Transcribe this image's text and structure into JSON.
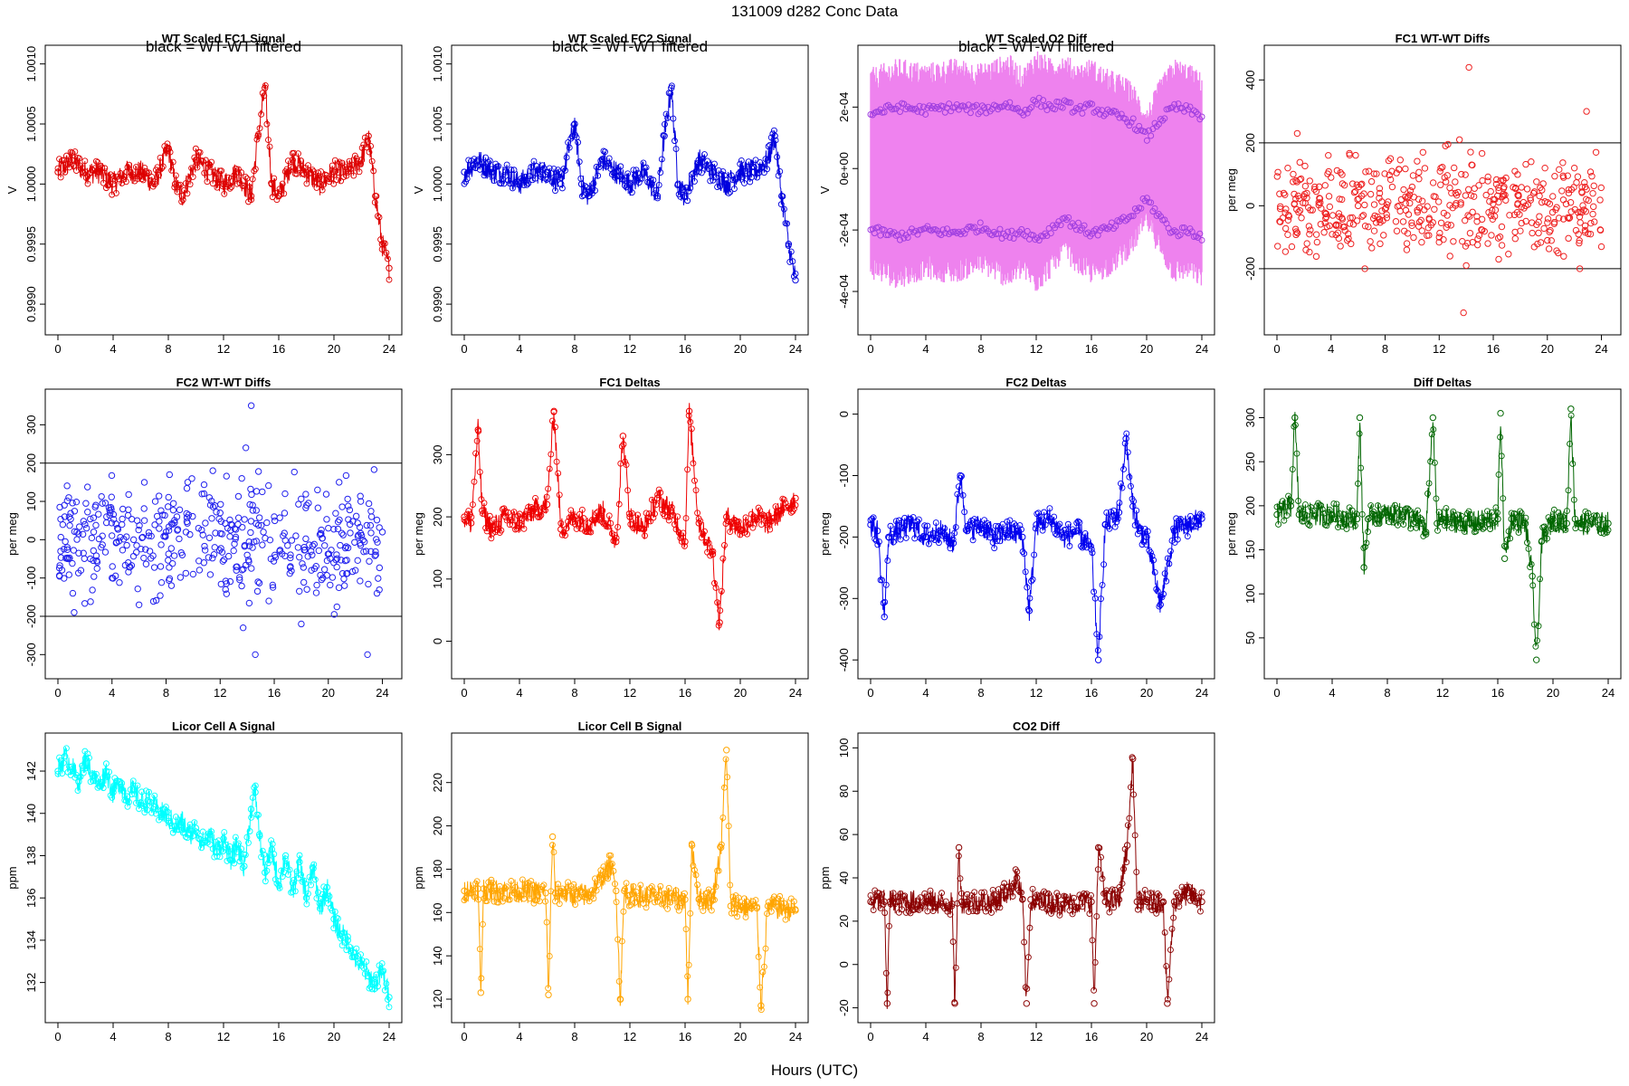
{
  "page": {
    "title": "131009    d282    Conc Data",
    "xlabel": "Hours (UTC)"
  },
  "chart_data": [
    {
      "id": "wt-fc1-signal",
      "type": "line",
      "title": "WT Scaled FC1 Signal",
      "annotation": "black = WT-WT filtered",
      "ylabel": "V",
      "xlim": [
        0,
        24
      ],
      "ylim": [
        0.99885,
        1.00105
      ],
      "xticks": [
        "0",
        "4",
        "8",
        "12",
        "16",
        "20",
        "24"
      ],
      "yticks": [
        "0.9990",
        "0.9995",
        "1.0000",
        "1.0005",
        "1.0010"
      ],
      "ytick_values": [
        0.999,
        0.9995,
        1.0,
        1.0005,
        1.001
      ],
      "color": "#dd0000",
      "style": "line+points",
      "x": [
        0,
        1,
        2,
        3,
        4,
        5,
        6,
        7,
        8,
        8.5,
        9,
        10,
        11,
        12,
        13,
        14,
        14.5,
        15,
        15.5,
        16,
        17,
        18,
        19,
        20,
        21,
        22,
        22.5,
        23,
        23.5,
        24
      ],
      "y": [
        1.0001,
        1.0002,
        1.0001,
        1.0001,
        1.0,
        1.0001,
        1.0001,
        1.0,
        1.0003,
        1.0,
        0.9999,
        1.0002,
        1.0001,
        1.0,
        1.0001,
        0.9999,
        1.0004,
        1.0008,
        1.0,
        0.9999,
        1.0002,
        1.0001,
        1.0,
        1.0001,
        1.0001,
        1.0002,
        1.0004,
        0.9999,
        0.9995,
        0.9993
      ]
    },
    {
      "id": "wt-fc2-signal",
      "type": "line",
      "title": "WT Scaled FC2 Signal",
      "annotation": "black = WT-WT filtered",
      "ylabel": "V",
      "xlim": [
        0,
        24
      ],
      "ylim": [
        0.99885,
        1.00105
      ],
      "xticks": [
        "0",
        "4",
        "8",
        "12",
        "16",
        "20",
        "24"
      ],
      "yticks": [
        "0.9990",
        "0.9995",
        "1.0000",
        "1.0005",
        "1.0010"
      ],
      "ytick_values": [
        0.999,
        0.9995,
        1.0,
        1.0005,
        1.001
      ],
      "color": "#0000dd",
      "style": "line+points",
      "x": [
        0,
        1,
        2,
        3,
        4,
        5,
        6,
        7,
        8,
        8.5,
        9,
        10,
        11,
        12,
        13,
        14,
        14.5,
        15,
        15.5,
        16,
        17,
        18,
        19,
        20,
        21,
        22,
        22.5,
        23,
        23.5,
        24
      ],
      "y": [
        1.0001,
        1.0002,
        1.0001,
        1.0001,
        1.0,
        1.0001,
        1.0001,
        1.0,
        1.0005,
        1.0,
        0.9999,
        1.0002,
        1.0001,
        1.0,
        1.0001,
        0.9999,
        1.0004,
        1.0008,
        1.0,
        0.9999,
        1.0002,
        1.0001,
        1.0,
        1.0001,
        1.0001,
        1.0002,
        1.0004,
        0.9999,
        0.9995,
        0.9992
      ]
    },
    {
      "id": "wt-o2-diff",
      "type": "line",
      "title": "WT Scaled O2 Diff",
      "annotation": "black = WT-WT filtered",
      "ylabel": "V",
      "xlim": [
        0,
        24
      ],
      "ylim": [
        -0.0005,
        0.00036
      ],
      "xticks": [
        "0",
        "4",
        "8",
        "12",
        "16",
        "20",
        "24"
      ],
      "yticks": [
        "-4e-04",
        "-2e-04",
        "0e+00",
        "2e-04"
      ],
      "ytick_values": [
        -0.0004,
        -0.0002,
        0.0,
        0.0002
      ],
      "color": "#ee82ee",
      "point_color": "#a040e0",
      "style": "band+points",
      "x": [
        0,
        2,
        4,
        6,
        8,
        10,
        11,
        12,
        13,
        14,
        15,
        16,
        17,
        18,
        19,
        20,
        21,
        22,
        23,
        24
      ],
      "y_upper": [
        0.00018,
        0.0002,
        0.00019,
        0.0002,
        0.00019,
        0.00021,
        0.00018,
        0.00022,
        0.0002,
        0.00021,
        0.00019,
        0.0002,
        0.00018,
        0.00017,
        0.00015,
        0.0001,
        0.00016,
        0.0002,
        0.00019,
        0.00017
      ],
      "y_lower": [
        -0.0002,
        -0.00022,
        -0.0002,
        -0.00021,
        -0.00019,
        -0.00022,
        -0.0002,
        -0.00023,
        -0.0002,
        -0.00016,
        -0.00019,
        -0.00021,
        -0.0002,
        -0.00018,
        -0.00015,
        -0.0001,
        -0.00016,
        -0.00021,
        -0.0002,
        -0.00022
      ]
    },
    {
      "id": "fc1-wt-wt-diffs",
      "type": "scatter",
      "title": "FC1 WT-WT Diffs",
      "ylabel": "per meg",
      "xlim": [
        0,
        24.5
      ],
      "ylim": [
        -370,
        470
      ],
      "xticks": [
        "0",
        "4",
        "8",
        "12",
        "16",
        "20",
        "24"
      ],
      "yticks": [
        "-200",
        "0",
        "200",
        "400"
      ],
      "ytick_values": [
        -200,
        0,
        200,
        400
      ],
      "hlines": [
        200,
        -200
      ],
      "color": "#ee2222",
      "x": [
        0.2,
        0.5,
        0.8,
        1.1,
        1.4,
        1.6,
        2.0,
        2.4,
        2.8,
        3.2,
        3.6,
        4.0,
        4.4,
        4.8,
        5.2,
        5.6,
        6.0,
        6.4,
        6.8,
        7.2,
        7.6,
        8.0,
        8.4,
        8.8,
        9.2,
        9.6,
        10.0,
        10.4,
        10.8,
        11.2,
        11.6,
        12.0,
        12.4,
        12.8,
        13.2,
        13.6,
        14.0,
        14.4,
        14.8,
        15.2,
        15.6,
        16.0,
        16.4,
        16.8,
        17.2,
        17.6,
        18.0,
        18.4,
        18.8,
        19.2,
        19.6,
        20.0,
        20.4,
        20.8,
        21.2,
        21.6,
        22.0,
        22.4,
        22.8,
        23.2,
        23.6,
        24.0,
        13.8,
        14.2,
        13.5,
        6.5,
        1.5,
        22.9
      ],
      "y": [
        -50,
        40,
        120,
        -130,
        80,
        -20,
        30,
        -90,
        60,
        10,
        -40,
        90,
        -60,
        20,
        -110,
        70,
        0,
        -30,
        110,
        -80,
        40,
        -10,
        150,
        -50,
        20,
        -140,
        60,
        -20,
        170,
        -70,
        30,
        -100,
        90,
        -160,
        40,
        10,
        -190,
        130,
        -50,
        80,
        -120,
        20,
        -170,
        60,
        -30,
        110,
        -80,
        0,
        140,
        -60,
        50,
        -110,
        30,
        -150,
        90,
        -40,
        120,
        -200,
        60,
        -90,
        170,
        -130,
        -340,
        440,
        210,
        -200,
        230,
        300
      ]
    },
    {
      "id": "fc2-wt-wt-diffs",
      "type": "scatter",
      "title": "FC2 WT-WT Diffs",
      "ylabel": "per meg",
      "xlim": [
        0,
        24.5
      ],
      "ylim": [
        -330,
        360
      ],
      "xticks": [
        "0",
        "4",
        "8",
        "12",
        "16",
        "20",
        "24"
      ],
      "yticks": [
        "-300",
        "-200",
        "-100",
        "0",
        "100",
        "200",
        "300"
      ],
      "ytick_values": [
        -300,
        -200,
        -100,
        0,
        100,
        200,
        300
      ],
      "hlines": [
        200,
        -200
      ],
      "color": "#2222ee",
      "x": [
        0.2,
        0.5,
        0.8,
        1.1,
        1.4,
        1.7,
        2.0,
        2.4,
        2.8,
        3.2,
        3.6,
        4.0,
        4.4,
        4.8,
        5.2,
        5.6,
        6.0,
        6.4,
        6.8,
        7.2,
        7.6,
        8.0,
        8.4,
        8.8,
        9.2,
        9.6,
        10.0,
        10.4,
        10.8,
        11.2,
        11.6,
        12.0,
        12.4,
        12.8,
        13.2,
        13.6,
        14.0,
        14.4,
        14.8,
        15.2,
        15.6,
        16.0,
        16.4,
        16.8,
        17.2,
        17.6,
        18.0,
        18.4,
        18.8,
        19.2,
        19.6,
        20.0,
        20.4,
        20.8,
        21.2,
        21.6,
        22.0,
        22.4,
        22.8,
        23.2,
        23.6,
        24.0,
        14.3,
        14.6,
        13.9,
        22.9,
        13.7,
        1.2
      ],
      "y": [
        -30,
        60,
        110,
        -140,
        20,
        -80,
        40,
        -50,
        90,
        -20,
        60,
        -100,
        30,
        80,
        -60,
        0,
        -170,
        50,
        -30,
        100,
        -70,
        20,
        -120,
        60,
        -40,
        150,
        -90,
        30,
        -60,
        110,
        -20,
        70,
        -130,
        40,
        -80,
        160,
        -40,
        90,
        -110,
        20,
        -160,
        60,
        -30,
        120,
        -70,
        10,
        -220,
        90,
        -40,
        130,
        -100,
        30,
        -60,
        150,
        -120,
        40,
        -80,
        100,
        -30,
        60,
        -140,
        20,
        350,
        -300,
        240,
        -300,
        -230,
        -190
      ]
    },
    {
      "id": "fc1-deltas",
      "type": "line",
      "title": "FC1 Deltas",
      "ylabel": "per meg",
      "xlim": [
        0,
        24
      ],
      "ylim": [
        -40,
        385
      ],
      "xticks": [
        "0",
        "4",
        "8",
        "12",
        "16",
        "20",
        "24"
      ],
      "yticks": [
        "0",
        "100",
        "200",
        "300"
      ],
      "ytick_values": [
        0,
        100,
        200,
        300
      ],
      "color": "#ee0000",
      "style": "line+points",
      "x": [
        0,
        0.5,
        1.0,
        1.3,
        2,
        3,
        4,
        5,
        6,
        6.5,
        7,
        8,
        9,
        10,
        11,
        11.5,
        12,
        13,
        14,
        15,
        16,
        16.3,
        17,
        18,
        18.5,
        19,
        19.5,
        20,
        21,
        22,
        23,
        24
      ],
      "y": [
        200,
        190,
        340,
        210,
        180,
        200,
        190,
        210,
        220,
        370,
        180,
        200,
        190,
        210,
        160,
        330,
        200,
        180,
        230,
        210,
        160,
        370,
        190,
        140,
        30,
        200,
        190,
        180,
        200,
        190,
        210,
        230
      ]
    },
    {
      "id": "fc2-deltas",
      "type": "line",
      "title": "FC2 Deltas",
      "ylabel": "per meg",
      "xlim": [
        0,
        24
      ],
      "ylim": [
        -410,
        20
      ],
      "xticks": [
        "0",
        "4",
        "8",
        "12",
        "16",
        "20",
        "24"
      ],
      "yticks": [
        "-400",
        "-300",
        "-200",
        "-100",
        "0"
      ],
      "ytick_values": [
        -400,
        -300,
        -200,
        -100,
        0
      ],
      "color": "#0000ee",
      "style": "line+points",
      "x": [
        0,
        0.5,
        1.0,
        1.3,
        2,
        3,
        4,
        5,
        6,
        6.5,
        7,
        8,
        9,
        10,
        11,
        11.5,
        12,
        13,
        14,
        15,
        16,
        16.5,
        17,
        18,
        18.5,
        19,
        19.5,
        20,
        21,
        22,
        23,
        24
      ],
      "y": [
        -180,
        -190,
        -330,
        -200,
        -190,
        -180,
        -200,
        -190,
        -210,
        -100,
        -190,
        -180,
        -200,
        -190,
        -200,
        -320,
        -180,
        -170,
        -200,
        -190,
        -220,
        -400,
        -180,
        -160,
        -40,
        -150,
        -190,
        -200,
        -310,
        -190,
        -180,
        -170
      ]
    },
    {
      "id": "diff-deltas",
      "type": "line",
      "title": "Diff Deltas",
      "ylabel": "per meg",
      "xlim": [
        0,
        24
      ],
      "ylim": [
        18,
        318
      ],
      "xticks": [
        "0",
        "4",
        "8",
        "12",
        "16",
        "20",
        "24"
      ],
      "yticks": [
        "50",
        "100",
        "150",
        "200",
        "250",
        "300"
      ],
      "ytick_values": [
        50,
        100,
        150,
        200,
        250,
        300
      ],
      "color": "#006600",
      "style": "line+points",
      "x": [
        0,
        1.0,
        1.3,
        1.6,
        2,
        4,
        5.8,
        6.0,
        6.3,
        6.6,
        7,
        9,
        10.5,
        10.8,
        11.3,
        11.6,
        12,
        14,
        16.0,
        16.2,
        16.5,
        17,
        18,
        18.5,
        18.8,
        19.2,
        20,
        21,
        21.3,
        21.6,
        22,
        24
      ],
      "y": [
        190,
        200,
        300,
        190,
        190,
        190,
        185,
        300,
        130,
        185,
        190,
        190,
        180,
        170,
        300,
        180,
        185,
        180,
        185,
        305,
        140,
        185,
        180,
        120,
        25,
        160,
        185,
        180,
        310,
        185,
        180,
        180
      ]
    },
    {
      "id": "licor-cell-a",
      "type": "line",
      "title": "Licor Cell A Signal",
      "ylabel": "ppm",
      "xlim": [
        0,
        24
      ],
      "ylim": [
        130.7,
        143.2
      ],
      "xticks": [
        "0",
        "4",
        "8",
        "12",
        "16",
        "20",
        "24"
      ],
      "yticks": [
        "132",
        "134",
        "136",
        "138",
        "140",
        "142"
      ],
      "ytick_values": [
        132,
        134,
        136,
        138,
        140,
        142
      ],
      "color": "#00ffff",
      "style": "line+points",
      "x": [
        0,
        0.5,
        1,
        1.5,
        2,
        2.5,
        3,
        3.5,
        4,
        4.5,
        5,
        5.5,
        6,
        6.5,
        7,
        7.5,
        8,
        8.5,
        9,
        9.5,
        10,
        10.5,
        11,
        11.5,
        12,
        12.5,
        13,
        13.5,
        14,
        14.3,
        14.6,
        15,
        15.5,
        16,
        16.5,
        17,
        17.5,
        18,
        18.5,
        19,
        19.5,
        20,
        20.5,
        21,
        21.5,
        22,
        22.5,
        23,
        23.5,
        24
      ],
      "y": [
        142.0,
        142.7,
        142.2,
        141.5,
        142.6,
        141.8,
        141.3,
        142.0,
        141.0,
        141.5,
        140.8,
        141.1,
        140.5,
        140.6,
        140.3,
        140.0,
        139.8,
        139.4,
        139.6,
        139.0,
        139.3,
        138.6,
        139.0,
        138.2,
        138.8,
        137.8,
        138.5,
        137.5,
        140.2,
        141.0,
        139.0,
        137.2,
        138.3,
        136.6,
        138.0,
        136.3,
        137.7,
        136.0,
        137.4,
        135.5,
        136.5,
        135.0,
        134.3,
        134.0,
        133.2,
        132.8,
        132.3,
        132.0,
        132.5,
        131.3
      ]
    },
    {
      "id": "licor-cell-b",
      "type": "line",
      "title": "Licor Cell B Signal",
      "ylabel": "ppm",
      "xlim": [
        0,
        24
      ],
      "ylim": [
        115,
        237
      ],
      "xticks": [
        "0",
        "4",
        "8",
        "12",
        "16",
        "20",
        "24"
      ],
      "yticks": [
        "120",
        "140",
        "160",
        "180",
        "200",
        "220"
      ],
      "ytick_values": [
        120,
        140,
        160,
        180,
        200,
        220
      ],
      "color": "#ffa500",
      "style": "line+points",
      "x": [
        0,
        1.0,
        1.2,
        1.4,
        2,
        4,
        5.9,
        6.1,
        6.4,
        6.6,
        7,
        9,
        10.2,
        10.6,
        11.0,
        11.3,
        11.6,
        12,
        14,
        16.0,
        16.2,
        16.5,
        17,
        18,
        18.6,
        19.0,
        19.3,
        19.6,
        20,
        21.2,
        21.5,
        22,
        24
      ],
      "y": [
        170,
        171,
        123,
        171,
        170,
        170,
        169,
        122,
        195,
        169,
        169,
        168,
        178,
        182,
        170,
        120,
        170,
        168,
        167,
        166,
        120,
        191,
        166,
        166,
        190,
        235,
        163,
        164,
        163,
        162,
        117,
        163,
        161
      ]
    },
    {
      "id": "co2-diff",
      "type": "line",
      "title": "CO2 Diff",
      "ylabel": "ppm",
      "xlim": [
        0,
        24
      ],
      "ylim": [
        -21,
        101
      ],
      "xticks": [
        "0",
        "4",
        "8",
        "12",
        "16",
        "20",
        "24"
      ],
      "yticks": [
        "-20",
        "0",
        "20",
        "40",
        "60",
        "80",
        "100"
      ],
      "ytick_values": [
        -20,
        0,
        20,
        40,
        60,
        80,
        100
      ],
      "color": "#8b0000",
      "style": "line+points",
      "x": [
        0,
        1.0,
        1.2,
        1.4,
        2,
        4,
        5.9,
        6.1,
        6.4,
        6.6,
        7,
        9,
        10.2,
        10.6,
        11.0,
        11.3,
        11.6,
        12,
        14,
        16.0,
        16.2,
        16.5,
        17,
        18,
        18.6,
        19.0,
        19.3,
        19.6,
        20,
        21.2,
        21.5,
        22,
        23,
        24
      ],
      "y": [
        29,
        29,
        -18,
        29,
        29,
        29,
        28,
        -18,
        54,
        29,
        29,
        29,
        35,
        40,
        30,
        -18,
        30,
        29,
        28,
        29,
        -18,
        54,
        29,
        30,
        55,
        95,
        29,
        29,
        29,
        29,
        -18,
        29,
        33,
        29
      ]
    }
  ]
}
